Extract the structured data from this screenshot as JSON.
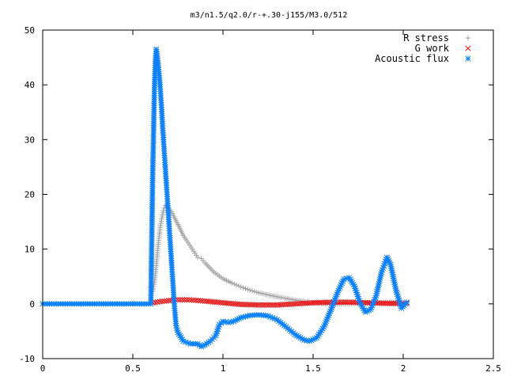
{
  "chart_data": {
    "type": "scatter",
    "title": "m3/n1.5/q2.0/r-+.30-j155/M3.0/512",
    "xlabel": "",
    "ylabel": "",
    "xlim": [
      0,
      2.5
    ],
    "ylim": [
      -10,
      50
    ],
    "x_ticks": [
      "0",
      "0.5",
      "1",
      "1.5",
      "2",
      "2.5"
    ],
    "y_ticks": [
      "-10",
      "0",
      "10",
      "20",
      "30",
      "40",
      "50"
    ],
    "x_tick_values": [
      0,
      0.5,
      1,
      1.5,
      2,
      2.5
    ],
    "y_tick_values": [
      -10,
      0,
      10,
      20,
      30,
      40,
      50
    ],
    "grid": false,
    "legend_position": "top-right",
    "series": [
      {
        "name": "R stress",
        "marker": "plus",
        "color": "#a0a0a0",
        "points": [
          [
            0.61,
            2.3
          ],
          [
            0.62,
            4
          ],
          [
            0.63,
            7
          ],
          [
            0.64,
            10.5
          ],
          [
            0.65,
            13.5
          ],
          [
            0.66,
            15.5
          ],
          [
            0.67,
            17
          ],
          [
            0.68,
            18
          ],
          [
            0.7,
            17.5
          ],
          [
            0.72,
            16.5
          ],
          [
            0.75,
            14.5
          ],
          [
            0.78,
            12.5
          ],
          [
            0.8,
            11.5
          ],
          [
            0.83,
            10
          ],
          [
            0.86,
            8.5
          ],
          [
            0.88,
            8.3
          ],
          [
            0.9,
            7.5
          ],
          [
            0.95,
            5.8
          ],
          [
            1.0,
            4.6
          ],
          [
            1.05,
            3.8
          ],
          [
            1.1,
            3.1
          ],
          [
            1.15,
            2.5
          ],
          [
            1.2,
            2.0
          ],
          [
            1.3,
            1.3
          ],
          [
            1.4,
            0.7
          ],
          [
            1.5,
            0.2
          ],
          [
            1.6,
            -0.1
          ],
          [
            1.7,
            0.0
          ],
          [
            1.8,
            0.2
          ],
          [
            1.9,
            0.3
          ],
          [
            2.0,
            0.3
          ],
          [
            2.02,
            0.3
          ]
        ]
      },
      {
        "name": "G work",
        "marker": "cross",
        "color": "#ff0000",
        "points": [
          [
            0.61,
            0.2
          ],
          [
            0.65,
            0.4
          ],
          [
            0.7,
            0.6
          ],
          [
            0.75,
            0.75
          ],
          [
            0.8,
            0.75
          ],
          [
            0.85,
            0.65
          ],
          [
            0.9,
            0.5
          ],
          [
            1.0,
            0.2
          ],
          [
            1.1,
            -0.1
          ],
          [
            1.2,
            -0.2
          ],
          [
            1.3,
            -0.2
          ],
          [
            1.4,
            0.0
          ],
          [
            1.5,
            0.2
          ],
          [
            1.6,
            0.3
          ],
          [
            1.7,
            0.3
          ],
          [
            1.8,
            0.2
          ],
          [
            1.9,
            0.1
          ],
          [
            2.0,
            0.1
          ],
          [
            2.02,
            0.1
          ]
        ]
      },
      {
        "name": "Acoustic flux",
        "marker": "star",
        "color": "#0a80ff",
        "points": [
          [
            0.0,
            0
          ],
          [
            0.05,
            0
          ],
          [
            0.1,
            0
          ],
          [
            0.15,
            0
          ],
          [
            0.2,
            0
          ],
          [
            0.25,
            0
          ],
          [
            0.3,
            0
          ],
          [
            0.35,
            0
          ],
          [
            0.4,
            0
          ],
          [
            0.45,
            0
          ],
          [
            0.5,
            0
          ],
          [
            0.55,
            0
          ],
          [
            0.6,
            0
          ],
          [
            0.61,
            23.3
          ],
          [
            0.62,
            39.5
          ],
          [
            0.625,
            44.3
          ],
          [
            0.63,
            46.5
          ],
          [
            0.64,
            44
          ],
          [
            0.65,
            40.5
          ],
          [
            0.655,
            38
          ],
          [
            0.66,
            35.5
          ],
          [
            0.665,
            32.5
          ],
          [
            0.67,
            30
          ],
          [
            0.675,
            27.5
          ],
          [
            0.68,
            25
          ],
          [
            0.685,
            22.5
          ],
          [
            0.69,
            20
          ],
          [
            0.695,
            17.5
          ],
          [
            0.7,
            15
          ],
          [
            0.705,
            12.5
          ],
          [
            0.71,
            10
          ],
          [
            0.715,
            7.5
          ],
          [
            0.72,
            5
          ],
          [
            0.725,
            2.5
          ],
          [
            0.73,
            0
          ],
          [
            0.735,
            -2
          ],
          [
            0.74,
            -4
          ],
          [
            0.75,
            -5.2
          ],
          [
            0.78,
            -6.8
          ],
          [
            0.82,
            -7.3
          ],
          [
            0.86,
            -7.3
          ],
          [
            0.88,
            -7.8
          ],
          [
            0.9,
            -7.5
          ],
          [
            0.93,
            -6.8
          ],
          [
            0.96,
            -5.8
          ],
          [
            0.98,
            -3.8
          ],
          [
            1.0,
            -3.2
          ],
          [
            1.03,
            -3.4
          ],
          [
            1.06,
            -3.2
          ],
          [
            1.1,
            -2.5
          ],
          [
            1.15,
            -2.1
          ],
          [
            1.2,
            -2.0
          ],
          [
            1.25,
            -2.2
          ],
          [
            1.3,
            -2.9
          ],
          [
            1.35,
            -4.2
          ],
          [
            1.4,
            -5.6
          ],
          [
            1.45,
            -6.6
          ],
          [
            1.48,
            -6.8
          ],
          [
            1.52,
            -6.2
          ],
          [
            1.56,
            -4.2
          ],
          [
            1.6,
            -1.0
          ],
          [
            1.64,
            2.4
          ],
          [
            1.67,
            4.5
          ],
          [
            1.7,
            4.8
          ],
          [
            1.73,
            3.2
          ],
          [
            1.76,
            0.2
          ],
          [
            1.79,
            -1.5
          ],
          [
            1.82,
            -1.0
          ],
          [
            1.85,
            1.5
          ],
          [
            1.88,
            5.8
          ],
          [
            1.91,
            8.5
          ],
          [
            1.93,
            7.2
          ],
          [
            1.96,
            2.5
          ],
          [
            1.99,
            -0.8
          ],
          [
            2.02,
            0.3
          ]
        ]
      }
    ]
  }
}
